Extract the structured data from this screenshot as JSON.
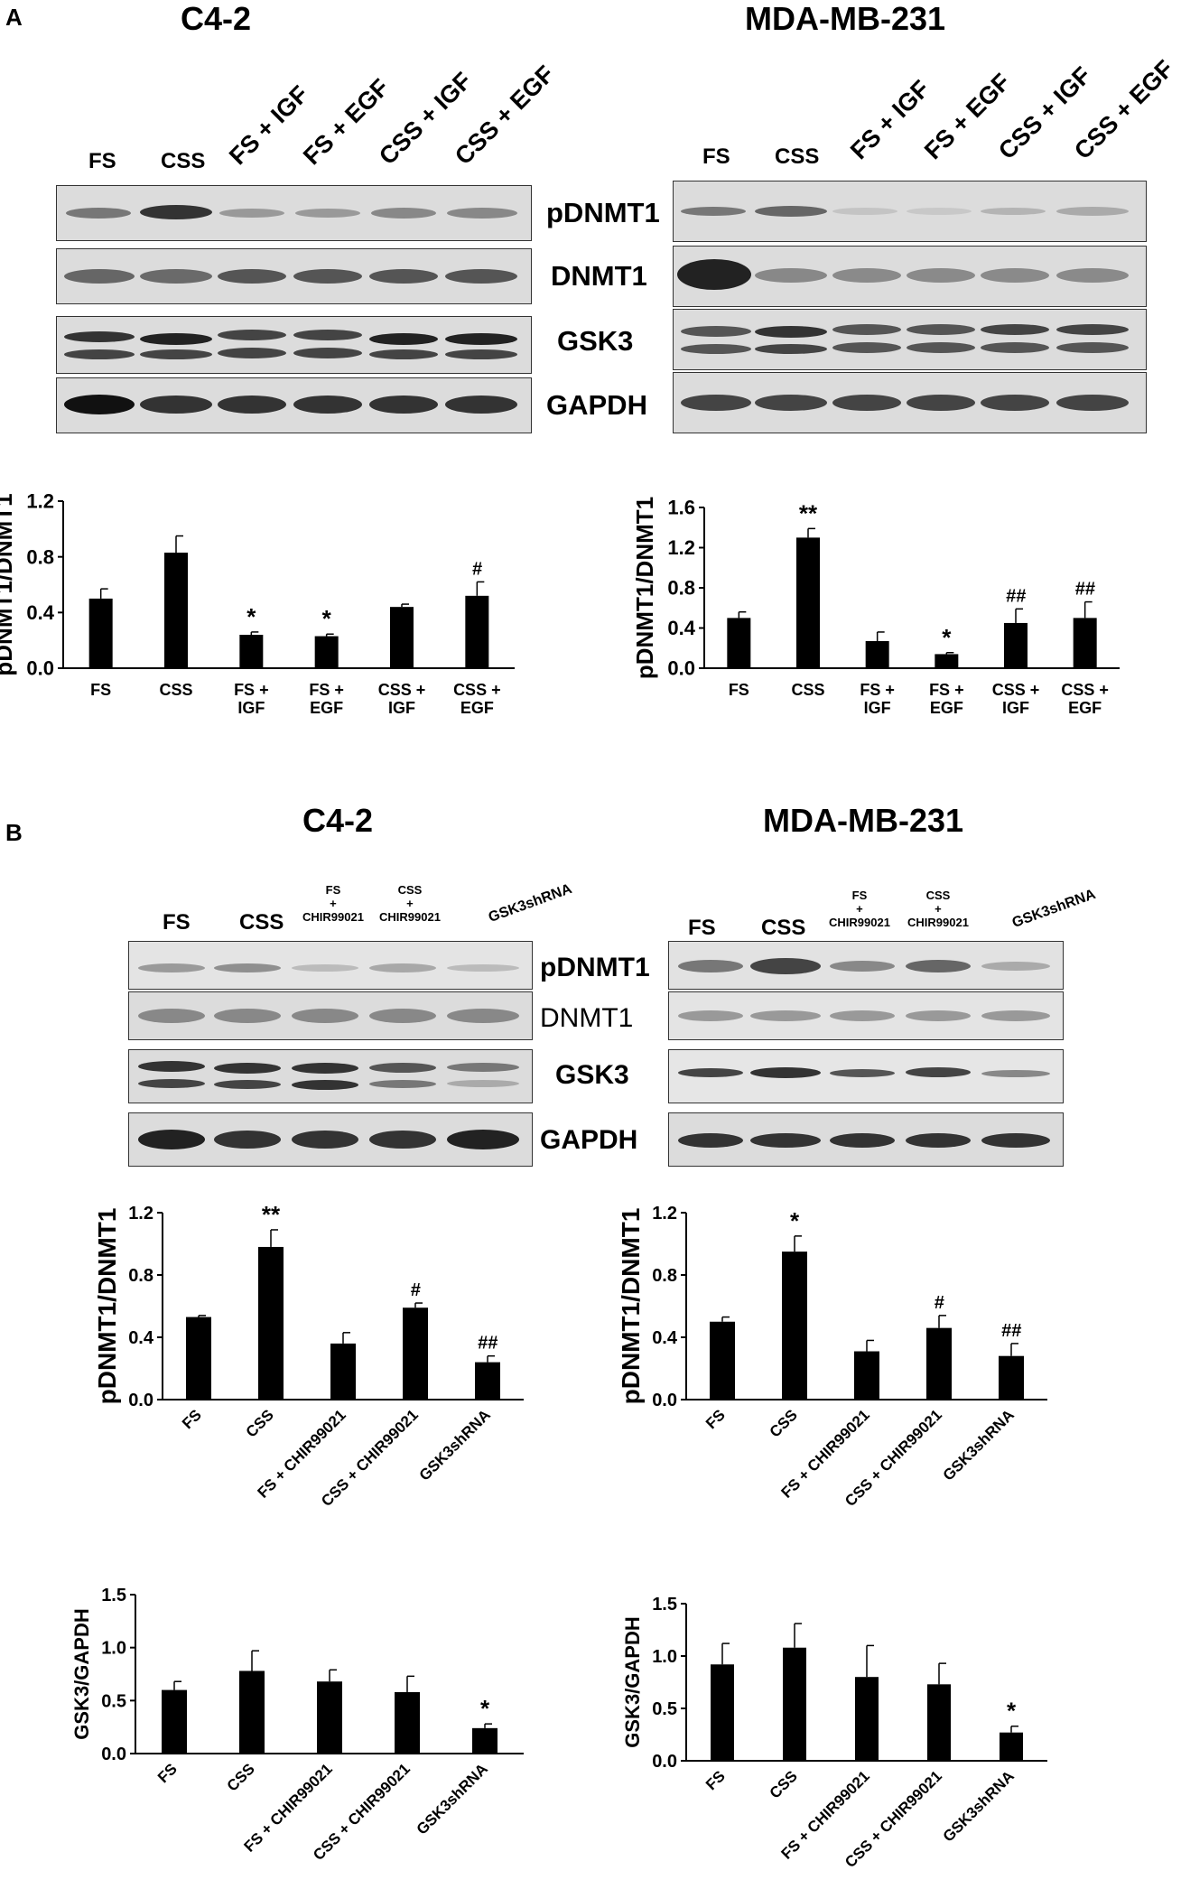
{
  "panel_a": {
    "letter": "A",
    "left": {
      "title": "C4-2",
      "lanes": [
        "FS",
        "CSS",
        "FS + IGF",
        "FS + EGF",
        "CSS + IGF",
        "CSS + EGF"
      ],
      "blots": [
        "pDNMT1",
        "DNMT1",
        "GSK3",
        "GAPDH"
      ]
    },
    "right": {
      "title": "MDA-MB-231",
      "lanes": [
        "FS",
        "CSS",
        "FS + IGF",
        "FS + EGF",
        "CSS + IGF",
        "CSS + EGF"
      ],
      "blots": [
        "pDNMT1",
        "DNMT1",
        "GSK3",
        "GAPDH"
      ]
    }
  },
  "panel_b": {
    "letter": "B",
    "left": {
      "title": "C4-2",
      "lanes": [
        "FS",
        "CSS",
        "FS\n+\nCHIR99021",
        "CSS\n+\nCHIR99021",
        "GSK3shRNA"
      ],
      "blots": [
        "pDNMT1",
        "DNMT1",
        "GSK3",
        "GAPDH"
      ]
    },
    "right": {
      "title": "MDA-MB-231",
      "lanes": [
        "FS",
        "CSS",
        "FS\n+\nCHIR99021",
        "CSS\n+\nCHIR99021",
        "GSK3shRNA"
      ],
      "blots": [
        "pDNMT1",
        "DNMT1",
        "GSK3",
        "GAPDH"
      ]
    }
  },
  "colors": {
    "bar": "#000000",
    "axis": "#000000",
    "background": "#ffffff",
    "blot_background": "#dcdcdc",
    "band": "#3a3a3a"
  },
  "chart_data": [
    {
      "id": "a-c42",
      "type": "bar",
      "categories": [
        "FS",
        "CSS",
        "FS +\nIGF",
        "FS +\nEGF",
        "CSS +\nIGF",
        "CSS +\nEGF"
      ],
      "values": [
        0.5,
        0.83,
        0.24,
        0.23,
        0.44,
        0.52
      ],
      "errors": [
        0.07,
        0.12,
        0.02,
        0.015,
        0.02,
        0.1
      ],
      "annotations": [
        "",
        "",
        "*",
        "*",
        "",
        "#"
      ],
      "ylabel": "pDNMT1/DNMT1",
      "ylim": [
        0,
        1.2
      ],
      "yticks": [
        "0.0",
        "0.4",
        "0.8",
        "1.2"
      ],
      "xlabel_rotation": "horizontal"
    },
    {
      "id": "a-mda",
      "type": "bar",
      "categories": [
        "FS",
        "CSS",
        "FS +\nIGF",
        "FS +\nEGF",
        "CSS +\nIGF",
        "CSS +\nEGF"
      ],
      "values": [
        0.5,
        1.3,
        0.27,
        0.14,
        0.45,
        0.5
      ],
      "errors": [
        0.06,
        0.09,
        0.09,
        0.015,
        0.14,
        0.16
      ],
      "annotations": [
        "",
        "**",
        "",
        "*",
        "##",
        "##"
      ],
      "ylabel": "pDNMT1/DNMT1",
      "ylim": [
        0,
        1.6
      ],
      "yticks": [
        "0.0",
        "0.4",
        "0.8",
        "1.2",
        "1.6"
      ],
      "xlabel_rotation": "horizontal"
    },
    {
      "id": "b-c42-pdnmt1",
      "type": "bar",
      "categories": [
        "FS",
        "CSS",
        "FS + CHIR99021",
        "CSS + CHIR99021",
        "GSK3shRNA"
      ],
      "values": [
        0.53,
        0.98,
        0.36,
        0.59,
        0.24
      ],
      "errors": [
        0.01,
        0.11,
        0.07,
        0.03,
        0.04
      ],
      "annotations": [
        "",
        "**",
        "",
        "#",
        "##"
      ],
      "ylabel": "pDNMT1/DNMT1",
      "ylim": [
        0,
        1.2
      ],
      "yticks": [
        "0.0",
        "0.4",
        "0.8",
        "1.2"
      ],
      "xlabel_rotation": "rotated"
    },
    {
      "id": "b-mda-pdnmt1",
      "type": "bar",
      "categories": [
        "FS",
        "CSS",
        "FS + CHIR99021",
        "CSS + CHIR99021",
        "GSK3shRNA"
      ],
      "values": [
        0.5,
        0.95,
        0.31,
        0.46,
        0.28
      ],
      "errors": [
        0.03,
        0.1,
        0.07,
        0.08,
        0.08
      ],
      "annotations": [
        "",
        "*",
        "",
        "#",
        "##"
      ],
      "ylabel": "pDNMT1/DNMT1",
      "ylim": [
        0,
        1.2
      ],
      "yticks": [
        "0.0",
        "0.4",
        "0.8",
        "1.2"
      ],
      "xlabel_rotation": "rotated"
    },
    {
      "id": "b-c42-gsk3",
      "type": "bar",
      "categories": [
        "FS",
        "CSS",
        "FS + CHIR99021",
        "CSS + CHIR99021",
        "GSK3shRNA"
      ],
      "values": [
        0.6,
        0.78,
        0.68,
        0.58,
        0.24
      ],
      "errors": [
        0.08,
        0.19,
        0.11,
        0.15,
        0.04
      ],
      "annotations": [
        "",
        "",
        "",
        "",
        "*"
      ],
      "ylabel": "GSK3/GAPDH",
      "ylim": [
        0,
        1.5
      ],
      "yticks": [
        "0.0",
        "0.5",
        "1.0",
        "1.5"
      ],
      "xlabel_rotation": "rotated"
    },
    {
      "id": "b-mda-gsk3",
      "type": "bar",
      "categories": [
        "FS",
        "CSS",
        "FS + CHIR99021",
        "CSS + CHIR99021",
        "GSK3shRNA"
      ],
      "values": [
        0.92,
        1.08,
        0.8,
        0.73,
        0.27
      ],
      "errors": [
        0.2,
        0.23,
        0.3,
        0.2,
        0.06
      ],
      "annotations": [
        "",
        "",
        "",
        "",
        "*"
      ],
      "ylabel": "GSK3/GAPDH",
      "ylim": [
        0,
        1.5
      ],
      "yticks": [
        "0.0",
        "0.5",
        "1.0",
        "1.5"
      ],
      "xlabel_rotation": "rotated"
    }
  ]
}
